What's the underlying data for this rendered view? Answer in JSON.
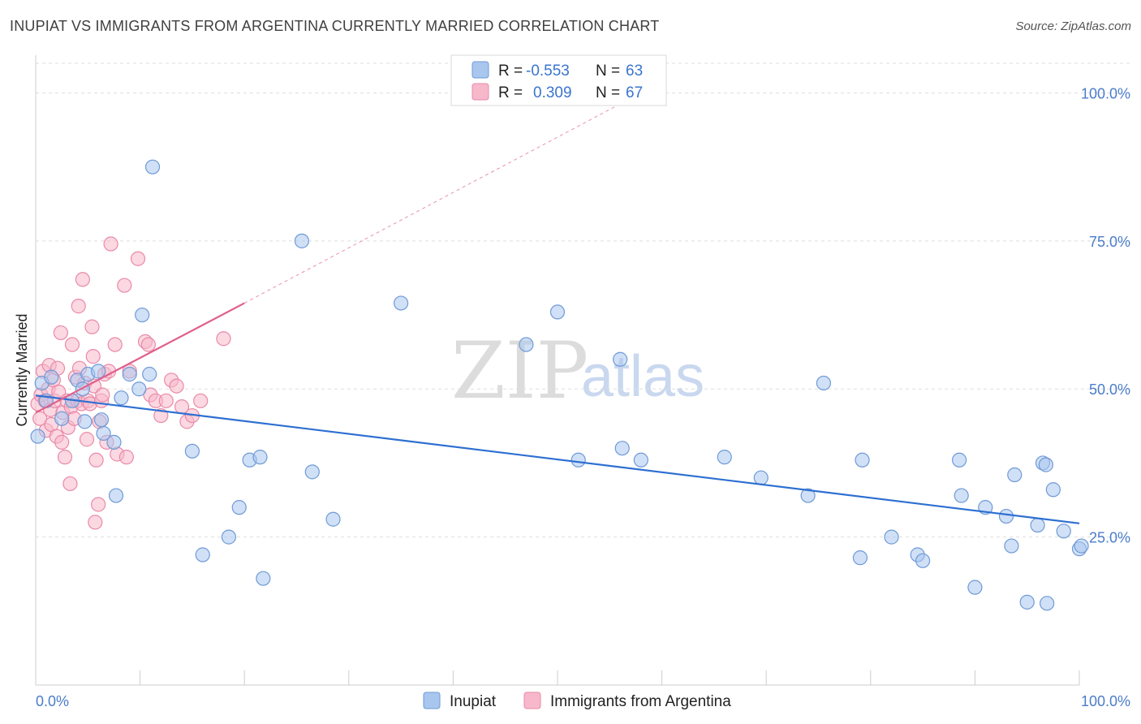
{
  "header": {
    "title": "INUPIAT VS IMMIGRANTS FROM ARGENTINA CURRENTLY MARRIED CORRELATION CHART",
    "source": "Source: ZipAtlas.com"
  },
  "watermark": {
    "zip": "ZIP",
    "atlas": "atlas"
  },
  "colors": {
    "inupiat_fill": "#a9c6ef",
    "inupiat_stroke": "#6f9ad6",
    "inupiat_line": "#2d6fd1",
    "argentina_fill": "#f7b8cb",
    "argentina_stroke": "#e98aa8",
    "argentina_line": "#e0608c"
  },
  "legend": {
    "rows": [
      {
        "r_label": "R =",
        "r_value": "-0.553",
        "n_label": "N =",
        "n_value": "63"
      },
      {
        "r_label": "R =",
        "r_value": "0.309",
        "n_label": "N =",
        "n_value": "67"
      }
    ]
  },
  "chart_data": {
    "type": "scatter",
    "ylabel": "Currently Married",
    "xlim": [
      0,
      100
    ],
    "ylim": [
      0,
      105
    ],
    "x_tick_labels": [
      "0.0%",
      "100.0%"
    ],
    "y_ticks": [
      {
        "value": 100,
        "label": "100.0%"
      },
      {
        "value": 75,
        "label": "75.0%"
      },
      {
        "value": 50,
        "label": "50.0%"
      },
      {
        "value": 25,
        "label": "25.0%"
      }
    ],
    "grid": true,
    "legend_position": "bottom",
    "series": [
      {
        "name": "Inupiat",
        "trend": {
          "x": [
            0,
            100
          ],
          "y": [
            48.9,
            27.3
          ]
        },
        "points": [
          [
            0.2,
            42.0
          ],
          [
            0.6,
            51.0
          ],
          [
            1.0,
            48.0
          ],
          [
            1.5,
            52.0
          ],
          [
            2.5,
            45.0
          ],
          [
            3.5,
            48.0
          ],
          [
            4.0,
            51.5
          ],
          [
            4.5,
            50.0
          ],
          [
            4.7,
            44.5
          ],
          [
            5.0,
            52.5
          ],
          [
            6.0,
            53.0
          ],
          [
            6.3,
            44.8
          ],
          [
            6.5,
            42.5
          ],
          [
            7.5,
            41.0
          ],
          [
            7.7,
            32.0
          ],
          [
            8.2,
            48.5
          ],
          [
            9.0,
            52.5
          ],
          [
            9.9,
            50.0
          ],
          [
            10.2,
            62.5
          ],
          [
            10.9,
            52.5
          ],
          [
            11.2,
            87.5
          ],
          [
            15.0,
            39.5
          ],
          [
            16.0,
            22.0
          ],
          [
            18.5,
            25.0
          ],
          [
            19.5,
            30.0
          ],
          [
            20.5,
            38.0
          ],
          [
            21.5,
            38.5
          ],
          [
            21.8,
            18.0
          ],
          [
            25.5,
            75.0
          ],
          [
            26.5,
            36.0
          ],
          [
            28.5,
            28.0
          ],
          [
            35.0,
            64.5
          ],
          [
            47.0,
            57.5
          ],
          [
            50.0,
            63.0
          ],
          [
            52.0,
            38.0
          ],
          [
            56.0,
            55.0
          ],
          [
            56.2,
            40.0
          ],
          [
            58.0,
            38.0
          ],
          [
            66.0,
            38.5
          ],
          [
            69.5,
            35.0
          ],
          [
            74.0,
            32.0
          ],
          [
            75.5,
            51.0
          ],
          [
            79.0,
            21.5
          ],
          [
            79.2,
            38.0
          ],
          [
            82.0,
            25.0
          ],
          [
            84.5,
            22.0
          ],
          [
            85.0,
            21.0
          ],
          [
            88.5,
            38.0
          ],
          [
            88.7,
            32.0
          ],
          [
            90.0,
            16.5
          ],
          [
            91.0,
            30.0
          ],
          [
            93.0,
            28.5
          ],
          [
            93.5,
            23.5
          ],
          [
            93.8,
            35.5
          ],
          [
            95.0,
            14.0
          ],
          [
            96.0,
            27.0
          ],
          [
            96.5,
            37.5
          ],
          [
            96.8,
            37.2
          ],
          [
            96.9,
            13.8
          ],
          [
            97.5,
            33.0
          ],
          [
            98.5,
            26.0
          ],
          [
            100.0,
            23.0
          ],
          [
            100.2,
            23.5
          ]
        ]
      },
      {
        "name": "Immigrants from Argentina",
        "trend": {
          "x": [
            0,
            20
          ],
          "y": [
            46.0,
            64.5
          ]
        },
        "trend_dashed": {
          "x": [
            20,
            58
          ],
          "y": [
            64.5,
            100
          ]
        },
        "points": [
          [
            0.2,
            47.5
          ],
          [
            0.4,
            45.0
          ],
          [
            0.5,
            49.0
          ],
          [
            0.7,
            53.0
          ],
          [
            0.9,
            48.0
          ],
          [
            1.0,
            43.0
          ],
          [
            1.2,
            50.0
          ],
          [
            1.3,
            54.0
          ],
          [
            1.4,
            46.5
          ],
          [
            1.5,
            44.0
          ],
          [
            1.7,
            51.5
          ],
          [
            1.8,
            48.0
          ],
          [
            2.0,
            42.0
          ],
          [
            2.1,
            53.5
          ],
          [
            2.2,
            49.5
          ],
          [
            2.4,
            59.5
          ],
          [
            2.5,
            41.0
          ],
          [
            2.6,
            46.0
          ],
          [
            2.8,
            38.5
          ],
          [
            3.0,
            48.0
          ],
          [
            3.1,
            43.5
          ],
          [
            3.3,
            34.0
          ],
          [
            3.4,
            47.0
          ],
          [
            3.5,
            57.5
          ],
          [
            3.7,
            45.0
          ],
          [
            3.8,
            52.0
          ],
          [
            4.0,
            48.0
          ],
          [
            4.1,
            64.0
          ],
          [
            4.2,
            53.5
          ],
          [
            4.4,
            47.5
          ],
          [
            4.5,
            68.5
          ],
          [
            4.7,
            51.0
          ],
          [
            4.9,
            41.5
          ],
          [
            5.0,
            48.0
          ],
          [
            5.2,
            47.5
          ],
          [
            5.4,
            60.5
          ],
          [
            5.5,
            55.5
          ],
          [
            5.6,
            50.5
          ],
          [
            5.7,
            27.5
          ],
          [
            5.8,
            38.0
          ],
          [
            6.0,
            30.5
          ],
          [
            6.1,
            44.5
          ],
          [
            6.3,
            48.0
          ],
          [
            6.4,
            49.0
          ],
          [
            6.6,
            52.5
          ],
          [
            6.8,
            41.0
          ],
          [
            7.0,
            53.0
          ],
          [
            7.2,
            74.5
          ],
          [
            7.6,
            57.5
          ],
          [
            7.8,
            39.0
          ],
          [
            8.5,
            67.5
          ],
          [
            8.7,
            38.5
          ],
          [
            9.0,
            53.0
          ],
          [
            9.8,
            72.0
          ],
          [
            10.5,
            58.0
          ],
          [
            10.8,
            57.5
          ],
          [
            11.0,
            49.0
          ],
          [
            11.5,
            48.0
          ],
          [
            12.0,
            45.5
          ],
          [
            12.5,
            48.0
          ],
          [
            13.0,
            51.5
          ],
          [
            13.5,
            50.5
          ],
          [
            14.0,
            47.0
          ],
          [
            14.5,
            44.5
          ],
          [
            15.0,
            45.5
          ],
          [
            15.8,
            48.0
          ],
          [
            18.0,
            58.5
          ]
        ]
      }
    ]
  }
}
